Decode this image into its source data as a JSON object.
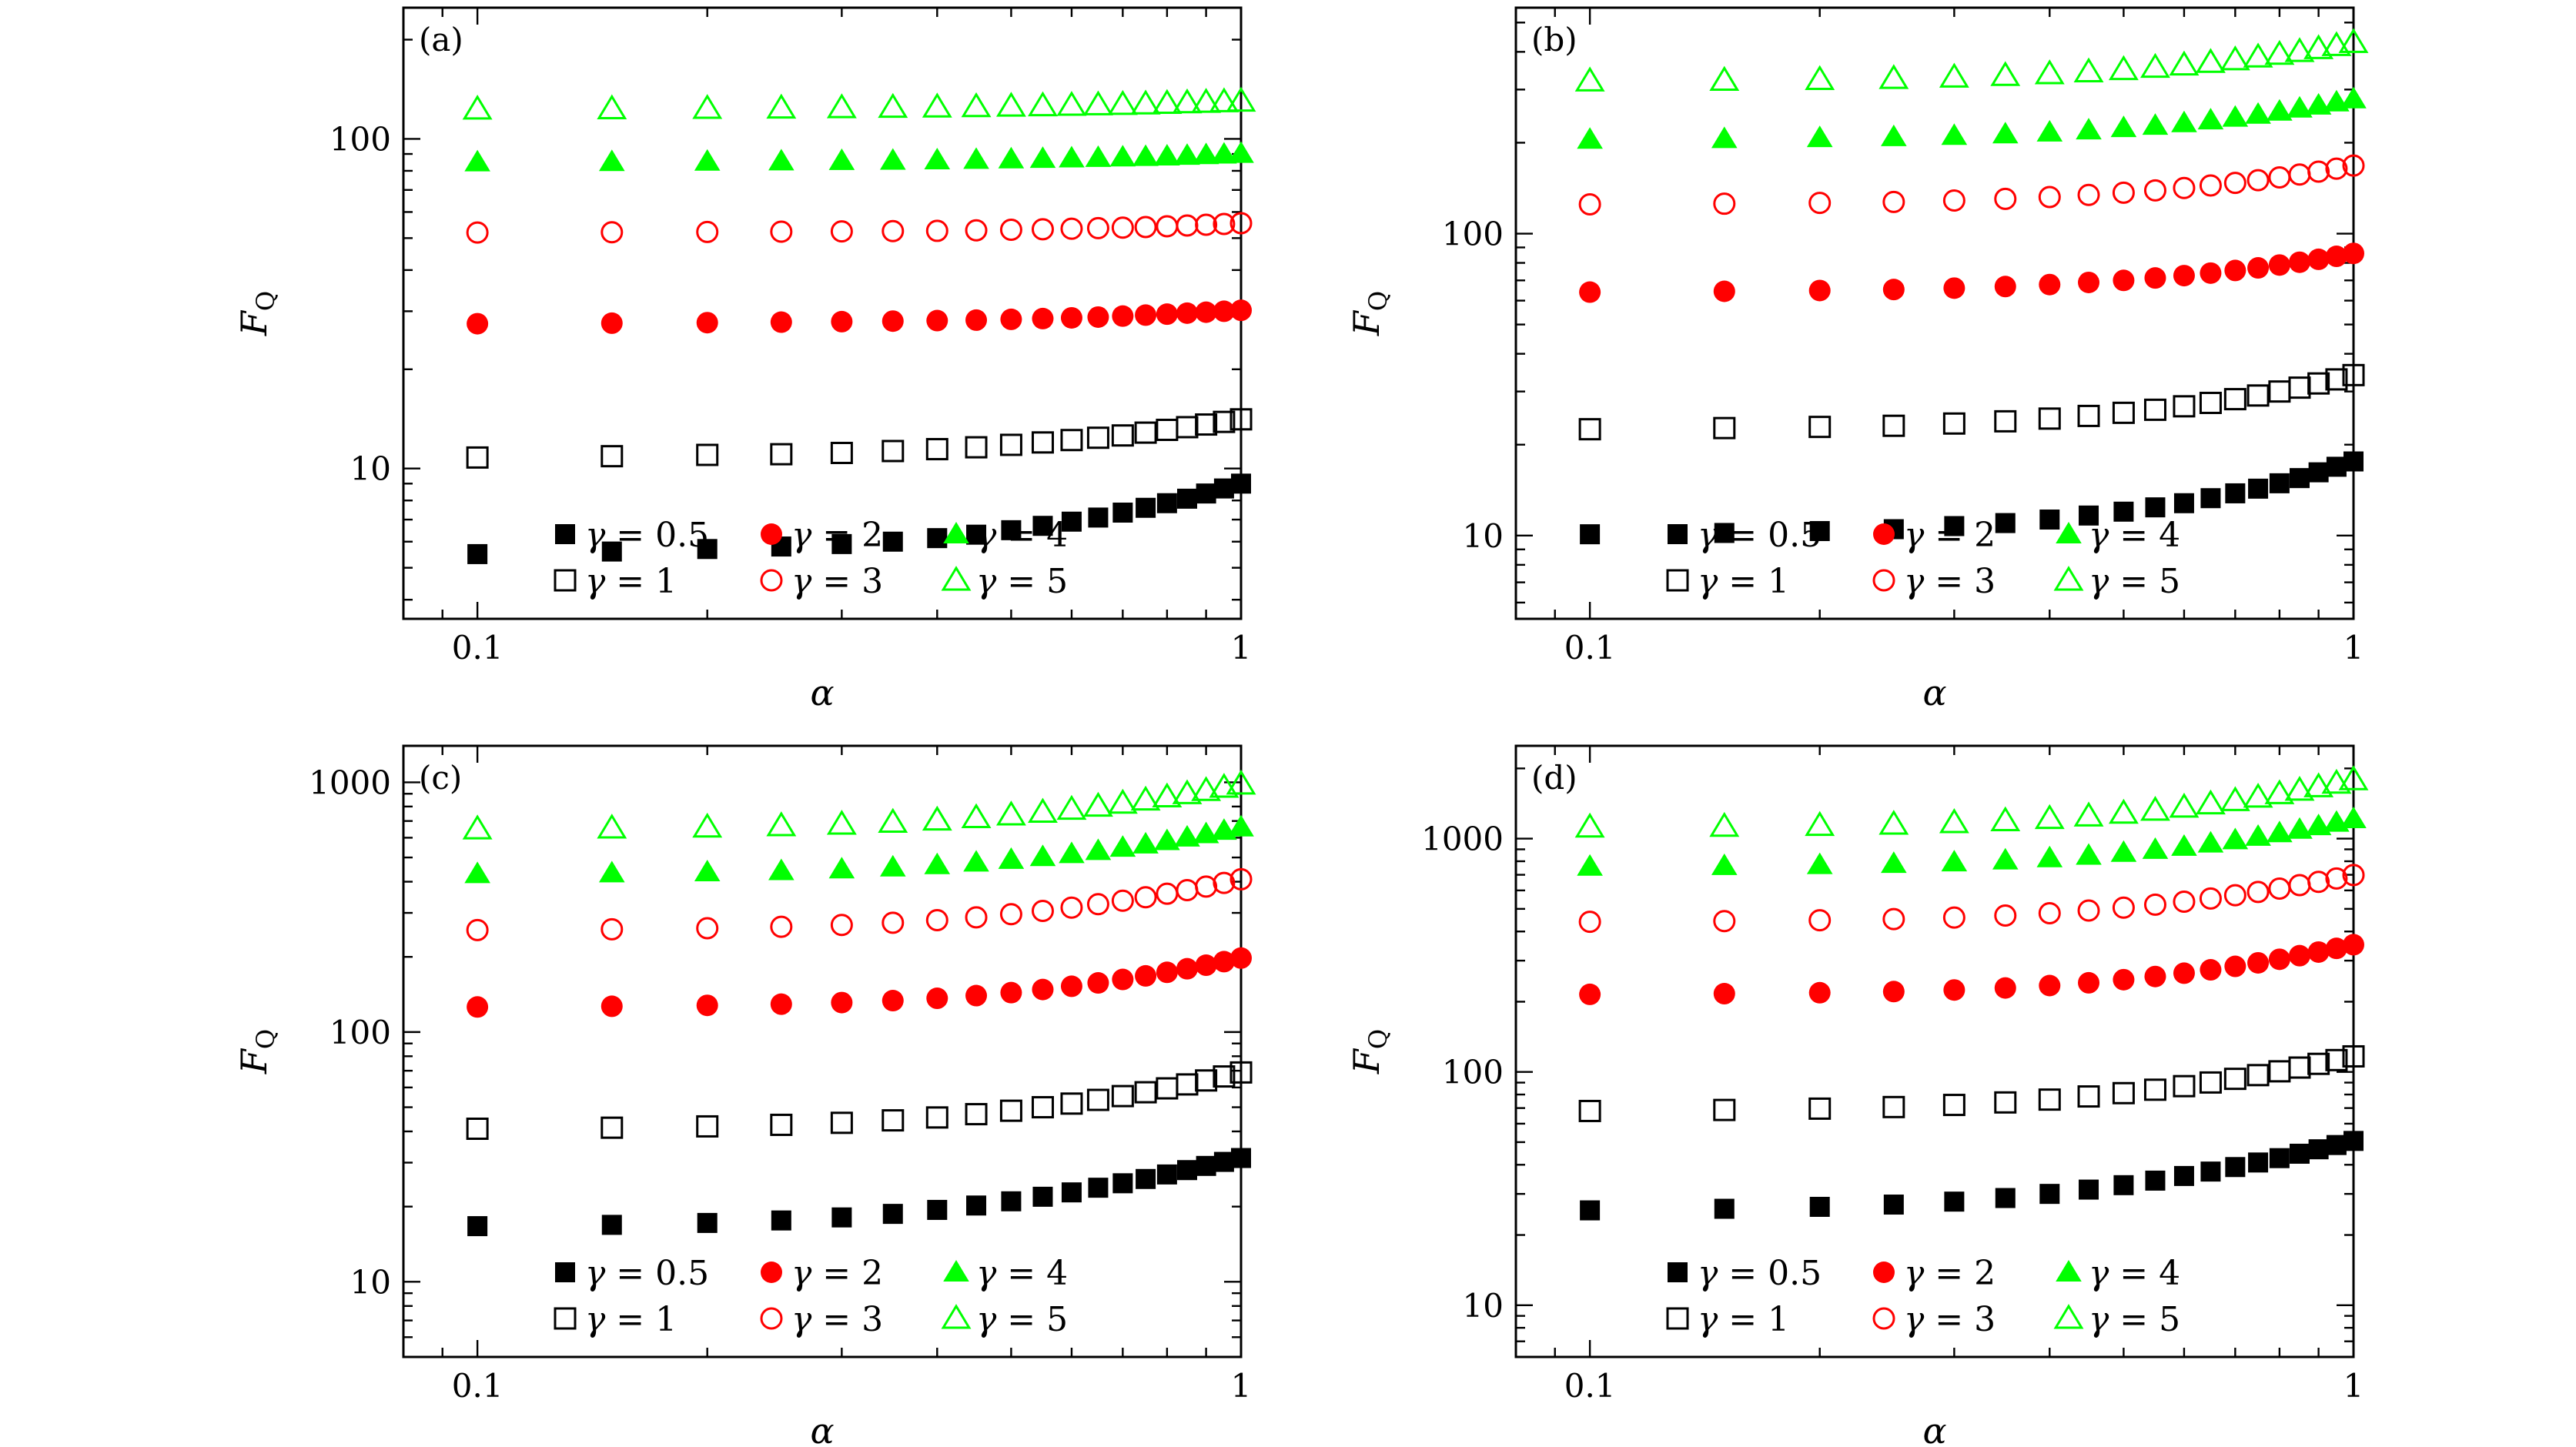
{
  "chart_data": [
    {
      "type": "scatter",
      "panel_label": "(a)",
      "xlabel": "α",
      "ylabel": "F",
      "ylabel_subscript": "Q",
      "xscale": "log",
      "yscale": "log",
      "xlim": [
        0.08,
        1.0
      ],
      "ylim": [
        3.5,
        250
      ],
      "xticks": [
        {
          "value": 0.1,
          "label": "0.1"
        },
        {
          "value": 1,
          "label": "1"
        }
      ],
      "yticks": [
        {
          "value": 10,
          "label": "10"
        },
        {
          "value": 100,
          "label": "100"
        }
      ],
      "x": [
        0.1,
        0.15,
        0.2,
        0.25,
        0.3,
        0.35,
        0.4,
        0.45,
        0.5,
        0.55,
        0.6,
        0.65,
        0.7,
        0.75,
        0.8,
        0.85,
        0.9,
        0.95,
        1.0
      ],
      "series": [
        {
          "name": "γ = 0.5",
          "marker": "square-filled",
          "color": "#000000",
          "values": [
            5.5,
            5.6,
            5.7,
            5.8,
            5.9,
            6.0,
            6.15,
            6.3,
            6.5,
            6.7,
            6.9,
            7.1,
            7.35,
            7.6,
            7.85,
            8.1,
            8.4,
            8.7,
            9.0
          ]
        },
        {
          "name": "γ = 1",
          "marker": "square-open",
          "color": "#000000",
          "values": [
            10.8,
            10.9,
            11.0,
            11.05,
            11.15,
            11.3,
            11.45,
            11.6,
            11.8,
            12.0,
            12.2,
            12.4,
            12.6,
            12.85,
            13.1,
            13.35,
            13.6,
            13.85,
            14.1
          ]
        },
        {
          "name": "γ = 2",
          "marker": "circle-filled",
          "color": "#ff0000",
          "values": [
            27.5,
            27.6,
            27.7,
            27.8,
            27.9,
            28.0,
            28.1,
            28.2,
            28.35,
            28.5,
            28.65,
            28.8,
            29.0,
            29.2,
            29.4,
            29.6,
            29.8,
            30.0,
            30.2
          ]
        },
        {
          "name": "γ = 3",
          "marker": "circle-open",
          "color": "#ff0000",
          "values": [
            52,
            52.1,
            52.2,
            52.3,
            52.4,
            52.5,
            52.6,
            52.8,
            53.0,
            53.2,
            53.4,
            53.6,
            53.8,
            54.0,
            54.3,
            54.6,
            54.9,
            55.2,
            55.5
          ]
        },
        {
          "name": "γ = 4",
          "marker": "triangle-filled",
          "color": "#00ff00",
          "values": [
            85,
            85.2,
            85.4,
            85.6,
            85.8,
            86.0,
            86.2,
            86.5,
            86.8,
            87.1,
            87.4,
            87.7,
            88.0,
            88.3,
            88.6,
            89.0,
            89.4,
            89.8,
            90.2
          ]
        },
        {
          "name": "γ = 5",
          "marker": "triangle-open",
          "color": "#00ff00",
          "values": [
            123,
            123.3,
            123.6,
            123.9,
            124.2,
            124.5,
            124.8,
            125.1,
            125.5,
            125.9,
            126.3,
            126.7,
            127.1,
            127.5,
            128.0,
            128.5,
            129.0,
            129.5,
            130.0
          ]
        }
      ]
    },
    {
      "type": "scatter",
      "panel_label": "(b)",
      "xlabel": "α",
      "ylabel": "F",
      "ylabel_subscript": "Q",
      "xscale": "log",
      "yscale": "log",
      "xlim": [
        0.08,
        1.0
      ],
      "ylim": [
        5.3,
        560
      ],
      "xticks": [
        {
          "value": 0.1,
          "label": "0.1"
        },
        {
          "value": 1,
          "label": "1"
        }
      ],
      "yticks": [
        {
          "value": 10,
          "label": "10"
        },
        {
          "value": 100,
          "label": "100"
        }
      ],
      "x": [
        0.1,
        0.15,
        0.2,
        0.25,
        0.3,
        0.35,
        0.4,
        0.45,
        0.5,
        0.55,
        0.6,
        0.65,
        0.7,
        0.75,
        0.8,
        0.85,
        0.9,
        0.95,
        1.0
      ],
      "series": [
        {
          "name": "γ = 0.5",
          "marker": "square-filled",
          "color": "#000000",
          "values": [
            10.1,
            10.2,
            10.35,
            10.5,
            10.75,
            11.0,
            11.3,
            11.65,
            12.0,
            12.4,
            12.8,
            13.3,
            13.8,
            14.3,
            14.9,
            15.5,
            16.2,
            16.9,
            17.6
          ]
        },
        {
          "name": "γ = 1",
          "marker": "square-open",
          "color": "#000000",
          "values": [
            22.5,
            22.7,
            22.9,
            23.1,
            23.5,
            23.9,
            24.4,
            24.9,
            25.5,
            26.1,
            26.8,
            27.5,
            28.3,
            29.1,
            30.0,
            30.9,
            31.9,
            32.9,
            34.0
          ]
        },
        {
          "name": "γ = 2",
          "marker": "circle-filled",
          "color": "#ff0000",
          "values": [
            64,
            64.4,
            64.8,
            65.3,
            66.0,
            66.8,
            67.8,
            68.9,
            70.0,
            71.3,
            72.6,
            74.0,
            75.5,
            77.0,
            78.7,
            80.4,
            82.2,
            84.1,
            86.0
          ]
        },
        {
          "name": "γ = 3",
          "marker": "circle-open",
          "color": "#ff0000",
          "values": [
            125,
            125.6,
            126.4,
            127.3,
            128.7,
            130.3,
            132.2,
            134.3,
            136.6,
            139.0,
            141.6,
            144.3,
            147.2,
            150.3,
            153.5,
            156.9,
            160.4,
            164.1,
            168.0
          ]
        },
        {
          "name": "γ = 4",
          "marker": "triangle-filled",
          "color": "#00ff00",
          "values": [
            205,
            206,
            207.5,
            209,
            211,
            213.5,
            216.5,
            220,
            224,
            228,
            232.5,
            237.5,
            242.5,
            248,
            254,
            260,
            266,
            272.5,
            279
          ]
        },
        {
          "name": "γ = 5",
          "marker": "triangle-open",
          "color": "#00ff00",
          "values": [
            320,
            321.5,
            323.5,
            326,
            329.5,
            333.5,
            338,
            343,
            349,
            355,
            361.5,
            368.5,
            376,
            384,
            392,
            400.5,
            409.5,
            419,
            429
          ]
        }
      ]
    },
    {
      "type": "scatter",
      "panel_label": "(c)",
      "xlabel": "α",
      "ylabel": "F",
      "ylabel_subscript": "Q",
      "xscale": "log",
      "yscale": "log",
      "xlim": [
        0.08,
        1.0
      ],
      "ylim": [
        5.0,
        1400
      ],
      "xticks": [
        {
          "value": 0.1,
          "label": "0.1"
        },
        {
          "value": 1,
          "label": "1"
        }
      ],
      "yticks": [
        {
          "value": 10,
          "label": "10"
        },
        {
          "value": 100,
          "label": "100"
        },
        {
          "value": 1000,
          "label": "1000"
        }
      ],
      "x": [
        0.1,
        0.15,
        0.2,
        0.25,
        0.3,
        0.35,
        0.4,
        0.45,
        0.5,
        0.55,
        0.6,
        0.65,
        0.7,
        0.75,
        0.8,
        0.85,
        0.9,
        0.95,
        1.0
      ],
      "series": [
        {
          "name": "γ = 0.5",
          "marker": "square-filled",
          "color": "#000000",
          "values": [
            16.7,
            16.9,
            17.2,
            17.6,
            18.1,
            18.7,
            19.4,
            20.2,
            21.0,
            21.9,
            22.8,
            23.8,
            24.8,
            25.8,
            26.9,
            28.0,
            29.1,
            30.2,
            31.3
          ]
        },
        {
          "name": "γ = 1",
          "marker": "square-open",
          "color": "#000000",
          "values": [
            41,
            41.4,
            41.9,
            42.5,
            43.3,
            44.3,
            45.5,
            46.9,
            48.4,
            50.0,
            51.7,
            53.5,
            55.4,
            57.4,
            59.5,
            61.7,
            64.0,
            66.4,
            68.9
          ]
        },
        {
          "name": "γ = 2",
          "marker": "circle-filled",
          "color": "#ff0000",
          "values": [
            126,
            126.8,
            127.9,
            129.3,
            131.2,
            133.6,
            136.5,
            139.9,
            143.8,
            148.0,
            152.5,
            157.3,
            162.4,
            167.8,
            173.4,
            179.2,
            185.2,
            191.4,
            197.8
          ]
        },
        {
          "name": "γ = 3",
          "marker": "circle-open",
          "color": "#ff0000",
          "values": [
            256,
            258,
            260.5,
            264,
            268.5,
            274,
            280.5,
            288,
            296.5,
            305.5,
            315,
            325,
            335.5,
            346.5,
            358,
            370,
            382.5,
            395.5,
            409
          ]
        },
        {
          "name": "γ = 4",
          "marker": "triangle-filled",
          "color": "#00ff00",
          "values": [
            430,
            433,
            437,
            442,
            449,
            457,
            467,
            478,
            490,
            503,
            517,
            532,
            548,
            565,
            583,
            602,
            621,
            641,
            661
          ]
        },
        {
          "name": "γ = 5",
          "marker": "triangle-open",
          "color": "#00ff00",
          "values": [
            650,
            655,
            661,
            669,
            679,
            691,
            705,
            721,
            739,
            758,
            779,
            801,
            824,
            848,
            873,
            899,
            926,
            954,
            983
          ]
        }
      ]
    },
    {
      "type": "scatter",
      "panel_label": "(d)",
      "xlabel": "α",
      "ylabel": "F",
      "ylabel_subscript": "Q",
      "xscale": "log",
      "yscale": "log",
      "xlim": [
        0.08,
        1.0
      ],
      "ylim": [
        6.0,
        2500
      ],
      "xticks": [
        {
          "value": 0.1,
          "label": "0.1"
        },
        {
          "value": 1,
          "label": "1"
        }
      ],
      "yticks": [
        {
          "value": 10,
          "label": "10"
        },
        {
          "value": 100,
          "label": "100"
        },
        {
          "value": 1000,
          "label": "1000"
        }
      ],
      "x": [
        0.1,
        0.15,
        0.2,
        0.25,
        0.3,
        0.35,
        0.4,
        0.45,
        0.5,
        0.55,
        0.6,
        0.65,
        0.7,
        0.75,
        0.8,
        0.85,
        0.9,
        0.95,
        1.0
      ],
      "series": [
        {
          "name": "γ = 0.5",
          "marker": "square-filled",
          "color": "#000000",
          "values": [
            25.5,
            25.9,
            26.4,
            27.0,
            27.8,
            28.8,
            30.0,
            31.3,
            32.7,
            34.2,
            35.8,
            37.4,
            39.1,
            40.9,
            42.7,
            44.6,
            46.6,
            48.6,
            50.6
          ]
        },
        {
          "name": "γ = 1",
          "marker": "square-open",
          "color": "#000000",
          "values": [
            68,
            68.7,
            69.6,
            70.7,
            72.2,
            74.0,
            76.1,
            78.5,
            81.1,
            83.9,
            86.9,
            90.1,
            93.4,
            96.9,
            100.6,
            104.4,
            108.3,
            112.4,
            116.6
          ]
        },
        {
          "name": "γ = 2",
          "marker": "circle-filled",
          "color": "#ff0000",
          "values": [
            215,
            216.5,
            218.5,
            221,
            224.5,
            229,
            234.5,
            241,
            248.5,
            256.5,
            265,
            274,
            283.5,
            293.5,
            304,
            315,
            326.5,
            338.5,
            351
          ]
        },
        {
          "name": "γ = 3",
          "marker": "circle-open",
          "color": "#ff0000",
          "values": [
            440,
            443,
            447,
            452,
            459,
            468,
            479,
            492,
            506,
            521,
            537,
            554,
            572,
            591,
            611,
            632,
            653,
            675,
            698
          ]
        },
        {
          "name": "γ = 4",
          "marker": "triangle-filled",
          "color": "#00ff00",
          "values": [
            760,
            765,
            772,
            781,
            793,
            808,
            826,
            847,
            871,
            897,
            925,
            955,
            987,
            1021,
            1057,
            1094,
            1133,
            1173,
            1215
          ]
        },
        {
          "name": "γ = 5",
          "marker": "triangle-open",
          "color": "#00ff00",
          "values": [
            1120,
            1128,
            1138,
            1152,
            1170,
            1192,
            1218,
            1249,
            1284,
            1322,
            1363,
            1407,
            1454,
            1504,
            1556,
            1610,
            1667,
            1726,
            1787
          ]
        }
      ]
    }
  ]
}
